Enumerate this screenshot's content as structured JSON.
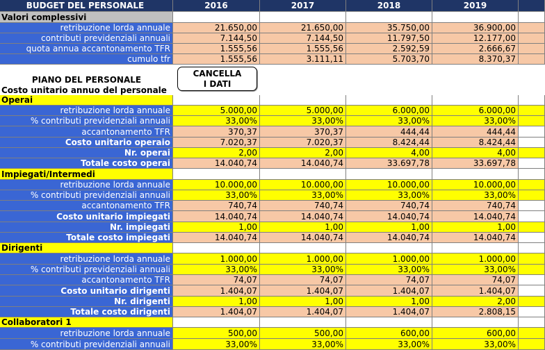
{
  "header": {
    "title": "BUDGET DEL PERSONALE",
    "years": [
      "2016",
      "2017",
      "2018",
      "2019"
    ]
  },
  "valori": {
    "section": "Valori complessivi",
    "rows": [
      {
        "label": "retribuzione lorda annuale",
        "values": [
          "21.650,00",
          "21.650,00",
          "35.750,00",
          "36.900,00"
        ]
      },
      {
        "label": "contributi previdenziali annuali",
        "values": [
          "7.144,50",
          "7.144,50",
          "11.797,50",
          "12.177,00"
        ]
      },
      {
        "label": "quota annua accantonamento TFR",
        "values": [
          "1.555,56",
          "1.555,56",
          "2.592,59",
          "2.666,67"
        ]
      },
      {
        "label": "cumulo tfr",
        "values": [
          "1.555,56",
          "3.111,11",
          "5.703,70",
          "8.370,37"
        ]
      }
    ]
  },
  "piano": {
    "title": "PIANO DEL PERSONALE",
    "subtitle": "Costo unitario annuo del personale"
  },
  "button": {
    "line1": "CANCELLA",
    "line2": "I DATI"
  },
  "operai": {
    "section": "Operai",
    "retribuzione": {
      "label": "retribuzione lorda annuale",
      "values": [
        "5.000,00",
        "5.000,00",
        "6.000,00",
        "6.000,00"
      ]
    },
    "contributi": {
      "label": "% contributi previdenziali annuali",
      "values": [
        "33,00%",
        "33,00%",
        "33,00%",
        "33,00%"
      ]
    },
    "tfr": {
      "label": "accantonamento TFR",
      "values": [
        "370,37",
        "370,37",
        "444,44",
        "444,44"
      ]
    },
    "costo": {
      "label": "Costo unitario operaio",
      "values": [
        "7.020,37",
        "7.020,37",
        "8.424,44",
        "8.424,44"
      ]
    },
    "numero": {
      "label": "Nr. operai",
      "values": [
        "2,00",
        "2,00",
        "4,00",
        "4,00"
      ]
    },
    "totale": {
      "label": "Totale costo operai",
      "values": [
        "14.040,74",
        "14.040,74",
        "33.697,78",
        "33.697,78"
      ]
    }
  },
  "impiegati": {
    "section": "Impiegati/Intermedi",
    "retribuzione": {
      "label": "retribuzione lorda annuale",
      "values": [
        "10.000,00",
        "10.000,00",
        "10.000,00",
        "10.000,00"
      ]
    },
    "contributi": {
      "label": "% contributi previdenziali annuali",
      "values": [
        "33,00%",
        "33,00%",
        "33,00%",
        "33,00%"
      ]
    },
    "tfr": {
      "label": "accantonamento TFR",
      "values": [
        "740,74",
        "740,74",
        "740,74",
        "740,74"
      ]
    },
    "costo": {
      "label": "Costo unitario impiegati",
      "values": [
        "14.040,74",
        "14.040,74",
        "14.040,74",
        "14.040,74"
      ]
    },
    "numero": {
      "label": "Nr. impiegati",
      "values": [
        "1,00",
        "1,00",
        "1,00",
        "1,00"
      ]
    },
    "totale": {
      "label": "Totale costo impiegati",
      "values": [
        "14.040,74",
        "14.040,74",
        "14.040,74",
        "14.040,74"
      ]
    }
  },
  "dirigenti": {
    "section": "Dirigenti",
    "retribuzione": {
      "label": "retribuzione lorda annuale",
      "values": [
        "1.000,00",
        "1.000,00",
        "1.000,00",
        "1.000,00"
      ]
    },
    "contributi": {
      "label": "% contributi previdenziali annuali",
      "values": [
        "33,00%",
        "33,00%",
        "33,00%",
        "33,00%"
      ]
    },
    "tfr": {
      "label": "accantonamento TFR",
      "values": [
        "74,07",
        "74,07",
        "74,07",
        "74,07"
      ]
    },
    "costo": {
      "label": "Costo unitario dirigenti",
      "values": [
        "1.404,07",
        "1.404,07",
        "1.404,07",
        "1.404,07"
      ]
    },
    "numero": {
      "label": "Nr. dirigenti",
      "values": [
        "1,00",
        "1,00",
        "1,00",
        "2,00"
      ]
    },
    "totale": {
      "label": "Totale costo dirigenti",
      "values": [
        "1.404,07",
        "1.404,07",
        "1.404,07",
        "2.808,15"
      ]
    }
  },
  "collaboratori": {
    "section": "Collaboratori 1",
    "retribuzione": {
      "label": "retribuzione lorda annuale",
      "values": [
        "500,00",
        "500,00",
        "600,00",
        "600,00"
      ]
    },
    "contributi": {
      "label": "% contributi previdenziali annuali",
      "values": [
        "33,00%",
        "33,00%",
        "33,00%",
        "33,00%"
      ]
    }
  },
  "colors": {
    "header": "#1f3566",
    "label_blue": "#3a66d4",
    "peach": "#f7c8a6",
    "yellow": "#ffff00",
    "gray": "#c0c0c0"
  }
}
